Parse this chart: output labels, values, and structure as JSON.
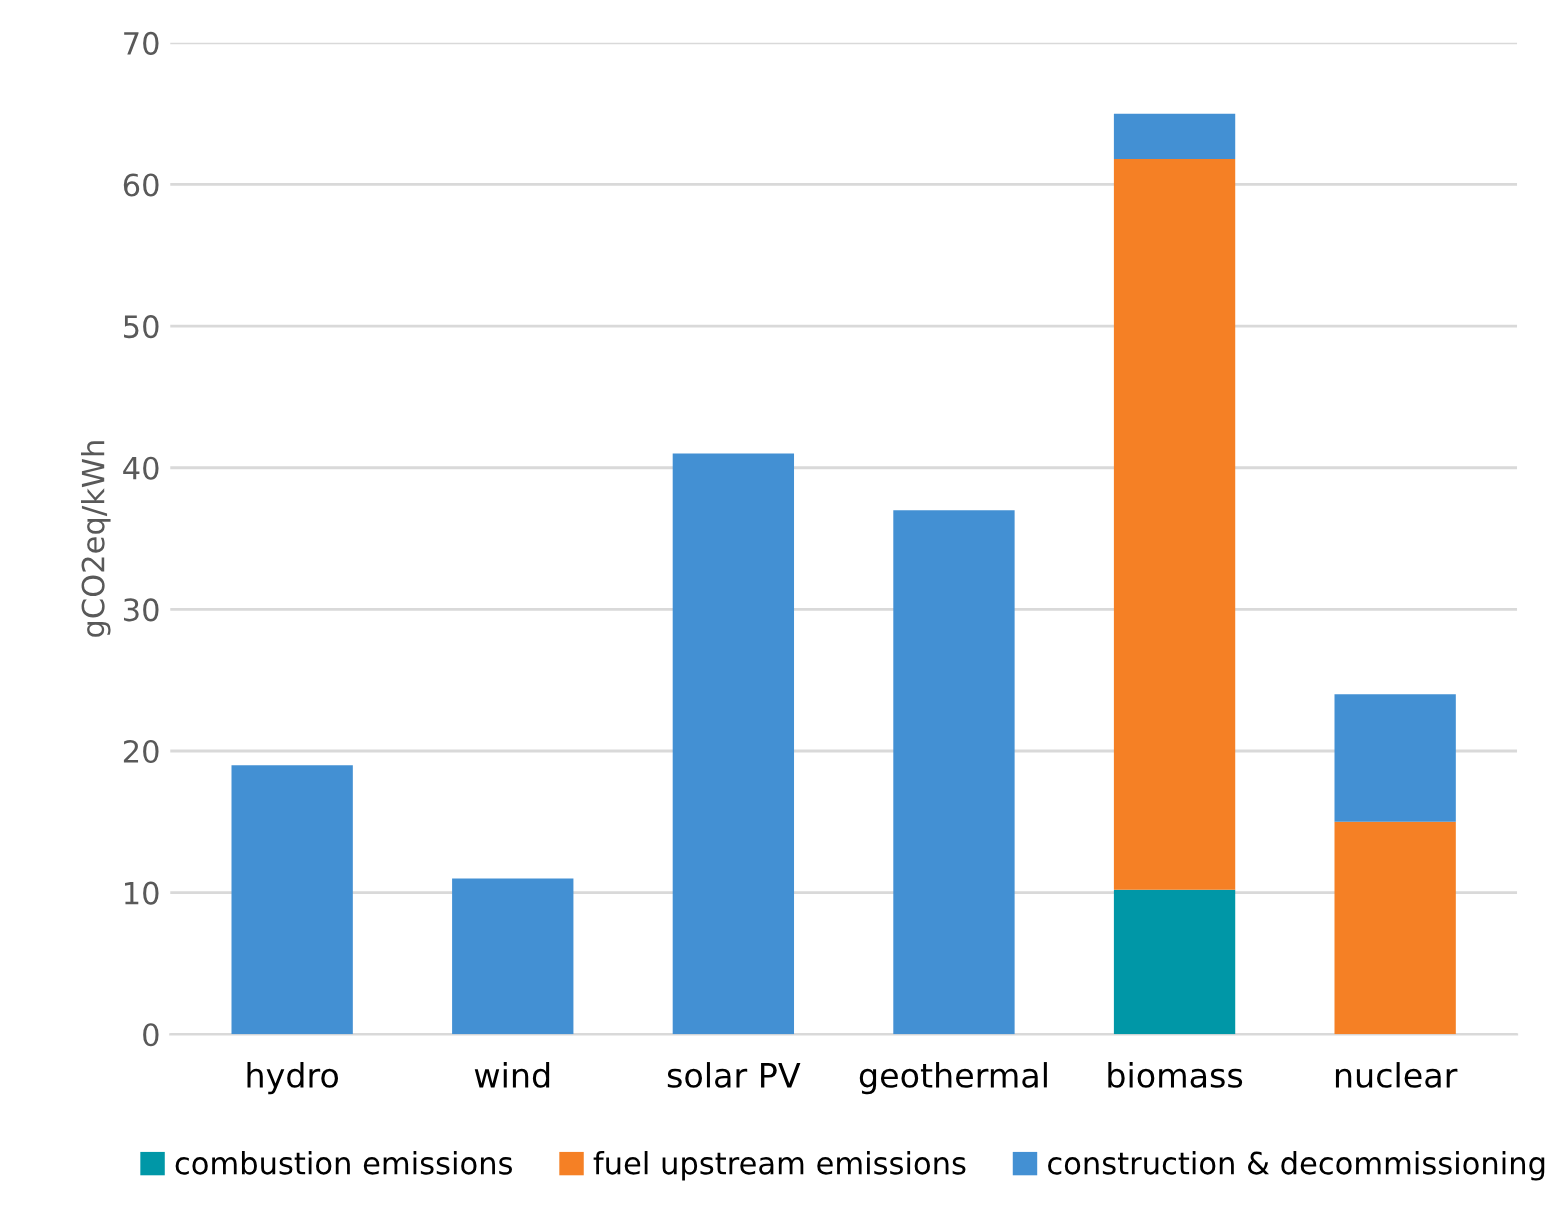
{
  "chart_data": {
    "type": "bar",
    "stacked": true,
    "ylabel": "gCO2eq/kWh",
    "categories": [
      "hydro",
      "wind",
      "solar PV",
      "geothermal",
      "biomass",
      "nuclear"
    ],
    "series": [
      {
        "name": "combustion emissions",
        "color": "#0097a7",
        "values": [
          0,
          0,
          0,
          0,
          10.2,
          0
        ]
      },
      {
        "name": "fuel upstream emissions",
        "color": "#f58025",
        "values": [
          0,
          0,
          0,
          0,
          51.6,
          15
        ]
      },
      {
        "name": "construction & decommissioning",
        "color": "#4390d3",
        "values": [
          19,
          11,
          41,
          37,
          3.2,
          9
        ]
      }
    ],
    "ylim": [
      0,
      70
    ],
    "yticks": [
      0,
      10,
      20,
      30,
      40,
      50,
      60,
      70
    ],
    "grid": "y",
    "legend": "bottom"
  }
}
